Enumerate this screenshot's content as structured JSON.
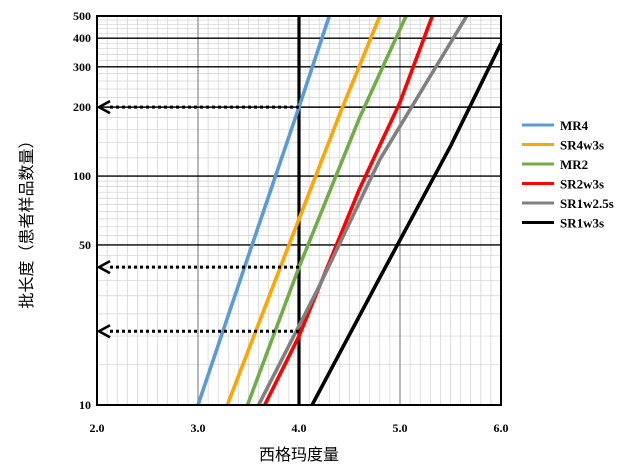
{
  "chart_data": {
    "type": "line",
    "title": "",
    "xlabel": "西格玛度量",
    "ylabel": "批长度（患者样品数量）",
    "xlim": [
      2.0,
      6.0
    ],
    "ylim": [
      10,
      500
    ],
    "y_scale": "log",
    "grid": true,
    "legend_position": "right",
    "x_ticks": [
      "2.0",
      "3.0",
      "4.0",
      "5.0",
      "6.0"
    ],
    "y_ticks": [
      {
        "value": 10,
        "label": "10"
      },
      {
        "value": 50,
        "label": "50"
      },
      {
        "value": 100,
        "label": "100"
      },
      {
        "value": 200,
        "label": "200"
      },
      {
        "value": 300,
        "label": "300"
      },
      {
        "value": 400,
        "label": "400"
      },
      {
        "value": 500,
        "label": "500"
      }
    ],
    "series": [
      {
        "name": "MR4",
        "color": "#5b9bd5",
        "x": [
          3.0,
          3.5,
          4.0,
          4.3
        ],
        "y": [
          10,
          45,
          200,
          500
        ]
      },
      {
        "name": "SR4w3s",
        "color": "#ffa500",
        "x": [
          3.29,
          3.9,
          4.4,
          4.8
        ],
        "y": [
          10,
          50,
          185,
          500
        ]
      },
      {
        "name": "MR2",
        "color": "#70ad47",
        "x": [
          3.49,
          4.0,
          4.6,
          5.06
        ],
        "y": [
          10,
          40,
          180,
          500
        ]
      },
      {
        "name": "SR2w3s",
        "color": "#ff0000",
        "x": [
          3.66,
          4.0,
          4.6,
          5.0,
          5.32
        ],
        "y": [
          10,
          20,
          88,
          210,
          500
        ]
      },
      {
        "name": "SR1w2.5s",
        "color": "#808080",
        "x": [
          3.6,
          4.2,
          4.8,
          5.66
        ],
        "y": [
          10,
          33,
          118,
          500
        ]
      },
      {
        "name": "SR1w3s",
        "color": "#000000",
        "x": [
          4.13,
          4.8,
          5.5,
          6.0
        ],
        "y": [
          10,
          36,
          135,
          380
        ]
      }
    ],
    "reference_arrows": [
      {
        "y": 200,
        "x_from": 2.0,
        "x_to": 4.0
      },
      {
        "y": 40,
        "x_from": 2.0,
        "x_to": 4.0
      },
      {
        "y": 21,
        "x_from": 2.0,
        "x_to": 4.0
      }
    ],
    "highlight_x": 4.0
  }
}
